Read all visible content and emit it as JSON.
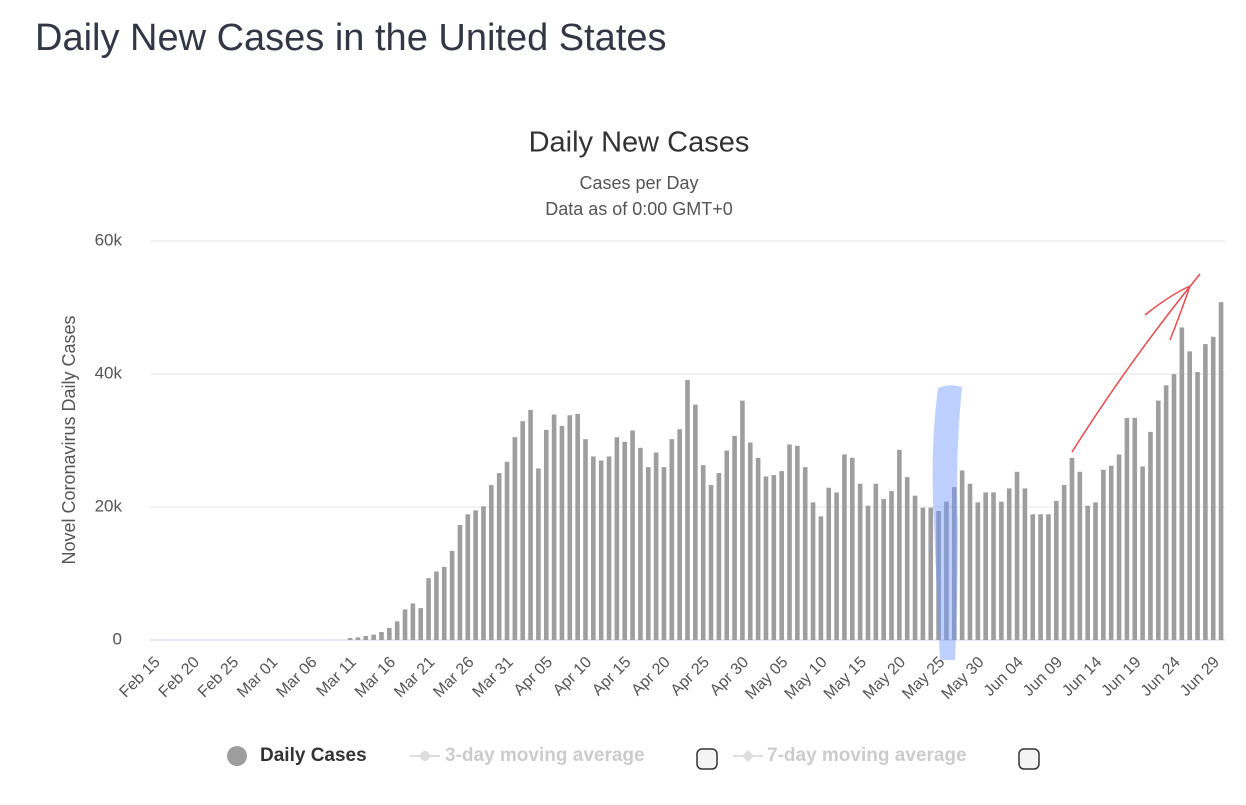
{
  "page_title": "Daily New Cases in the United States",
  "chart_data": {
    "type": "bar",
    "title": "Daily New Cases",
    "subtitle": "Cases per Day",
    "note": "Data as of 0:00 GMT+0",
    "y_label": "Novel Coronavirus Daily Cases",
    "categories": [
      "Feb 15",
      null,
      null,
      null,
      null,
      "Feb 20",
      null,
      null,
      null,
      null,
      "Feb 25",
      null,
      null,
      null,
      null,
      "Mar 01",
      null,
      null,
      null,
      null,
      "Mar 06",
      null,
      null,
      null,
      null,
      "Mar 11",
      null,
      null,
      null,
      null,
      "Mar 16",
      null,
      null,
      null,
      null,
      "Mar 21",
      null,
      null,
      null,
      null,
      "Mar 26",
      null,
      null,
      null,
      null,
      "Mar 31",
      null,
      null,
      null,
      null,
      "Apr 05",
      null,
      null,
      null,
      null,
      "Apr 10",
      null,
      null,
      null,
      null,
      "Apr 15",
      null,
      null,
      null,
      null,
      "Apr 20",
      null,
      null,
      null,
      null,
      "Apr 25",
      null,
      null,
      null,
      null,
      "Apr 30",
      null,
      null,
      null,
      null,
      "May 05",
      null,
      null,
      null,
      null,
      "May 10",
      null,
      null,
      null,
      null,
      "May 15",
      null,
      null,
      null,
      null,
      "May 20",
      null,
      null,
      null,
      null,
      "May 25",
      null,
      null,
      null,
      null,
      "May 30",
      null,
      null,
      null,
      null,
      "Jun 04",
      null,
      null,
      null,
      null,
      "Jun 09",
      null,
      null,
      null,
      null,
      "Jun 14",
      null,
      null,
      null,
      null,
      "Jun 19",
      null,
      null,
      null,
      null,
      "Jun 24",
      null,
      null,
      null,
      null,
      "Jun 29",
      null
    ],
    "series": [
      {
        "name": "Daily Cases",
        "color": "#9e9e9e",
        "values": [
          0,
          0,
          0,
          0,
          0,
          0,
          0,
          0,
          0,
          0,
          0,
          0,
          0,
          0,
          0,
          0,
          0,
          0,
          0,
          0,
          0,
          0,
          0,
          0,
          0,
          300,
          400,
          600,
          800,
          1200,
          1800,
          2800,
          4600,
          5500,
          4800,
          9300,
          10300,
          11000,
          13400,
          17300,
          18900,
          19500,
          20100,
          23300,
          25100,
          26800,
          30500,
          32900,
          34600,
          25800,
          31600,
          33900,
          32200,
          33800,
          34000,
          30200,
          27600,
          27000,
          27600,
          30500,
          29800,
          31500,
          28900,
          26000,
          28200,
          26000,
          30200,
          31700,
          39100,
          35400,
          26300,
          23300,
          25100,
          28500,
          30700,
          36000,
          29700,
          27400,
          24600,
          24800,
          25400,
          29400,
          29200,
          26000,
          20700,
          18600,
          22900,
          22200,
          27900,
          27400,
          23500,
          20200,
          23500,
          21200,
          22400,
          28600,
          24500,
          21700,
          19900,
          19900,
          19400,
          20800,
          23000,
          25500,
          23500,
          20700,
          22200,
          22200,
          20800,
          22800,
          25300,
          22800,
          18900,
          18900,
          18900,
          20900,
          23300,
          27400,
          25300,
          20200,
          20700,
          25600,
          26200,
          27900,
          33400,
          33400,
          26100,
          31300,
          36000,
          38300,
          40000,
          47000,
          43400,
          40300,
          44500,
          45600,
          50800
        ]
      }
    ],
    "legend_extra": [
      "3-day moving average",
      "7-day moving average"
    ],
    "ylim": [
      0,
      60000
    ],
    "yticks": [
      0,
      {
        "value": 20000,
        "label": "20k"
      },
      {
        "value": 40000,
        "label": "40k"
      },
      {
        "value": 60000,
        "label": "60k"
      }
    ],
    "grid": true
  }
}
